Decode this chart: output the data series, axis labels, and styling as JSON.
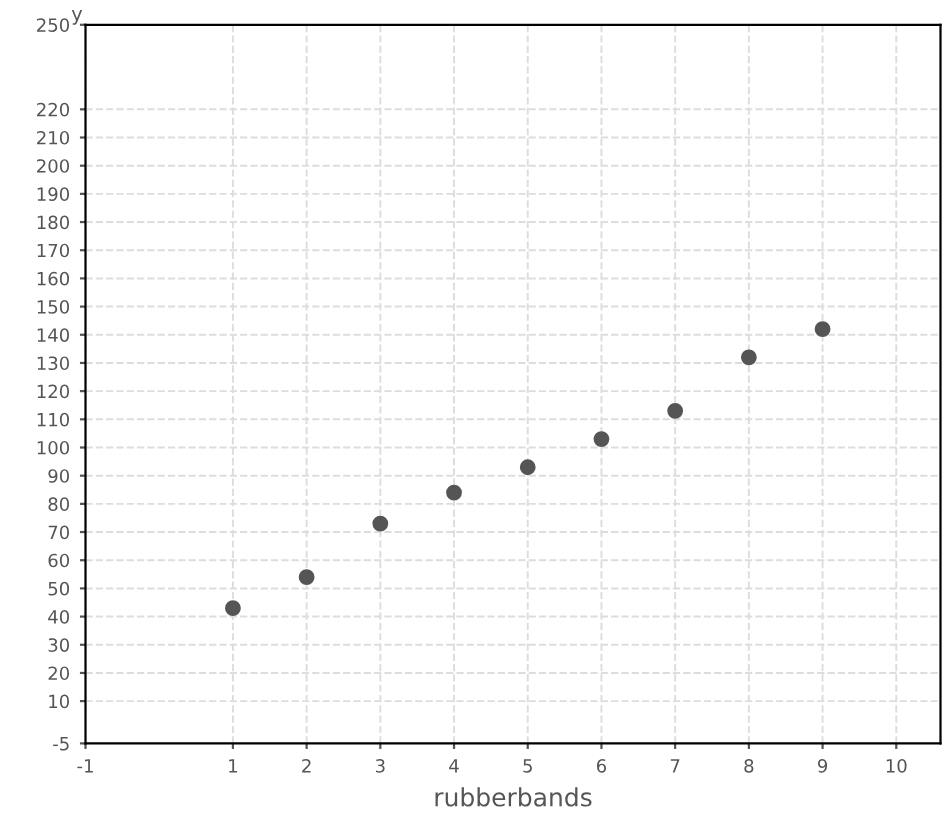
{
  "chart_data": {
    "type": "scatter",
    "xlabel": "rubberbands",
    "ylabel": "y",
    "x": [
      1,
      2,
      3,
      4,
      5,
      6,
      7,
      8,
      9
    ],
    "values": [
      43,
      54,
      73,
      84,
      93,
      103,
      113,
      132,
      142
    ],
    "color": "#555555",
    "marker": "circle",
    "grid": true,
    "xlim": [
      -1,
      10.6
    ],
    "xticks": [
      -1,
      1,
      2,
      3,
      4,
      5,
      6,
      7,
      8,
      9,
      10
    ],
    "ylim": [
      -5,
      250
    ],
    "yticks": [
      -5,
      10,
      20,
      30,
      40,
      50,
      60,
      70,
      80,
      90,
      100,
      110,
      120,
      130,
      140,
      150,
      160,
      170,
      180,
      190,
      200,
      210,
      220,
      250
    ]
  }
}
